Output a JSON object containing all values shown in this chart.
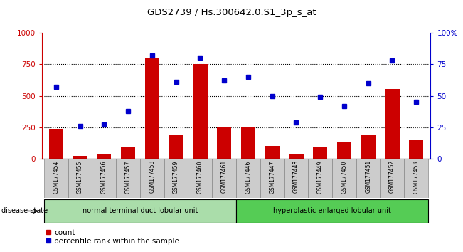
{
  "title": "GDS2739 / Hs.300642.0.S1_3p_s_at",
  "samples": [
    "GSM177454",
    "GSM177455",
    "GSM177456",
    "GSM177457",
    "GSM177458",
    "GSM177459",
    "GSM177460",
    "GSM177461",
    "GSM177446",
    "GSM177447",
    "GSM177448",
    "GSM177449",
    "GSM177450",
    "GSM177451",
    "GSM177452",
    "GSM177453"
  ],
  "counts": [
    240,
    20,
    35,
    90,
    800,
    185,
    750,
    255,
    255,
    100,
    35,
    90,
    130,
    185,
    555,
    145
  ],
  "percentiles": [
    57,
    26,
    27,
    38,
    82,
    61,
    80,
    62,
    65,
    50,
    29,
    49,
    42,
    60,
    78,
    45
  ],
  "group1_label": "normal terminal duct lobular unit",
  "group2_label": "hyperplastic enlarged lobular unit",
  "group1_count": 8,
  "group2_count": 8,
  "bar_color": "#cc0000",
  "dot_color": "#0000cc",
  "ylim_left": [
    0,
    1000
  ],
  "ylim_right": [
    0,
    100
  ],
  "yticks_left": [
    0,
    250,
    500,
    750,
    1000
  ],
  "yticks_right": [
    0,
    25,
    50,
    75,
    100
  ],
  "group1_bg": "#aaddaa",
  "group2_bg": "#55cc55",
  "sample_label_bg": "#cccccc",
  "disease_state_label": "disease state",
  "legend_count_label": "count",
  "legend_pct_label": "percentile rank within the sample",
  "fig_width": 6.51,
  "fig_height": 3.54
}
